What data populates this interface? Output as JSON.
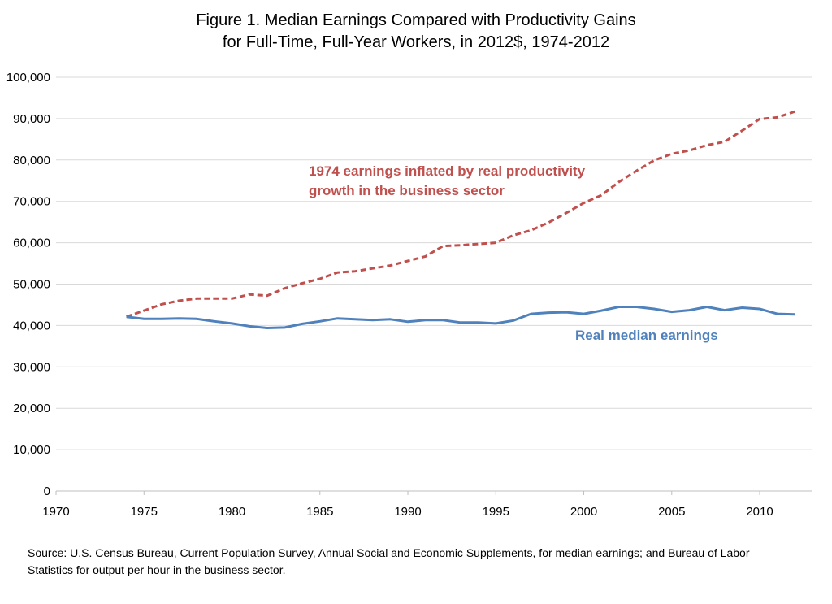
{
  "chart_data": {
    "type": "line",
    "title_lines": [
      "Figure 1. Median Earnings Compared with Productivity Gains",
      "for Full-Time, Full-Year Workers, in 2012$, 1974-2012"
    ],
    "xlabel": "",
    "ylabel": "",
    "xlim": [
      1970,
      2013
    ],
    "ylim": [
      0,
      100000
    ],
    "x_ticks": [
      1970,
      1975,
      1980,
      1985,
      1990,
      1995,
      2000,
      2005,
      2010
    ],
    "x_tick_labels": [
      "1970",
      "1975",
      "1980",
      "1985",
      "1990",
      "1995",
      "2000",
      "2005",
      "2010"
    ],
    "y_ticks": [
      0,
      10000,
      20000,
      30000,
      40000,
      50000,
      60000,
      70000,
      80000,
      90000,
      100000
    ],
    "y_tick_labels": [
      "0",
      "10,000",
      "20,000",
      "30,000",
      "40,000",
      "50,000",
      "60,000",
      "70,000",
      "80,000",
      "90,000",
      "100,000"
    ],
    "grid": true,
    "legend": "none",
    "series": [
      {
        "key": "productivity",
        "label_lines": [
          "1974 earnings inflated by real productivity",
          "growth in the business sector"
        ],
        "color": "#C0504D",
        "dash": true,
        "x": [
          1974,
          1975,
          1976,
          1977,
          1978,
          1979,
          1980,
          1981,
          1982,
          1983,
          1984,
          1985,
          1986,
          1987,
          1988,
          1989,
          1990,
          1991,
          1992,
          1993,
          1994,
          1995,
          1996,
          1997,
          1998,
          1999,
          2000,
          2001,
          2002,
          2003,
          2004,
          2005,
          2006,
          2007,
          2008,
          2009,
          2010,
          2011,
          2012
        ],
        "values": [
          42100,
          43600,
          45100,
          46000,
          46500,
          46500,
          46500,
          47500,
          47200,
          49000,
          50200,
          51300,
          52800,
          53100,
          53800,
          54500,
          55600,
          56700,
          59200,
          59400,
          59700,
          60000,
          61800,
          63000,
          64900,
          67200,
          69600,
          71500,
          74700,
          77400,
          79900,
          81500,
          82300,
          83600,
          84400,
          87100,
          89900,
          90300,
          91700
        ]
      },
      {
        "key": "earnings",
        "label_lines": [
          "Real median earnings"
        ],
        "color": "#4F81BD",
        "dash": false,
        "x": [
          1974,
          1975,
          1976,
          1977,
          1978,
          1979,
          1980,
          1981,
          1982,
          1983,
          1984,
          1985,
          1986,
          1987,
          1988,
          1989,
          1990,
          1991,
          1992,
          1993,
          1994,
          1995,
          1996,
          1997,
          1998,
          1999,
          2000,
          2001,
          2002,
          2003,
          2004,
          2005,
          2006,
          2007,
          2008,
          2009,
          2010,
          2011,
          2012
        ],
        "values": [
          42100,
          41600,
          41600,
          41700,
          41600,
          41000,
          40500,
          39800,
          39400,
          39500,
          40400,
          41000,
          41700,
          41500,
          41300,
          41500,
          40900,
          41300,
          41300,
          40700,
          40700,
          40500,
          41200,
          42800,
          43100,
          43200,
          42800,
          43600,
          44500,
          44500,
          44000,
          43300,
          43700,
          44500,
          43700,
          44300,
          44000,
          42800,
          42700
        ]
      }
    ]
  },
  "source_lines": [
    "Source: U.S. Census Bureau, Current Population Survey, Annual Social and Economic Supplements, for median earnings; and Bureau of Labor",
    "Statistics for output per hour in the business sector."
  ]
}
